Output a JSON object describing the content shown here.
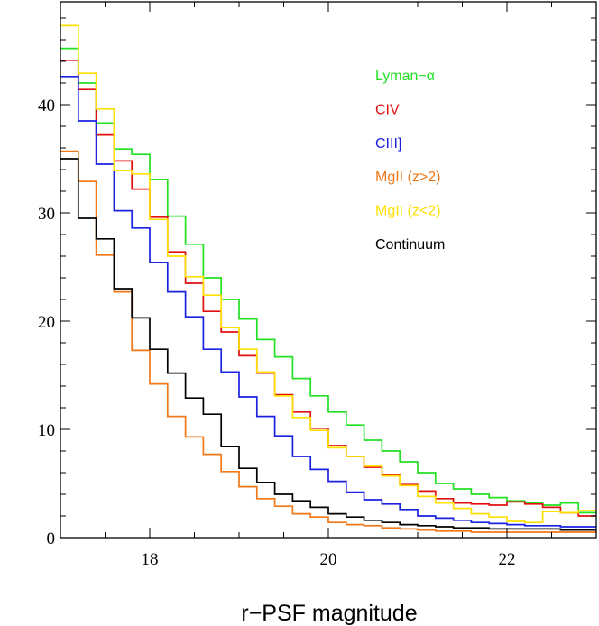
{
  "chart_data": {
    "type": "line",
    "style": "step histogram",
    "title": "",
    "xlabel": "r−PSF magnitude",
    "ylabel": "",
    "xlim": [
      17.0,
      23.0
    ],
    "ylim": [
      0,
      49.5
    ],
    "xticks_major": [
      18,
      20,
      22
    ],
    "xtick_labels": [
      "18",
      "20",
      "22"
    ],
    "yticks_major": [
      0,
      10,
      20,
      30,
      40
    ],
    "ytick_labels": [
      "0",
      "10",
      "20",
      "30",
      "40"
    ],
    "grid": false,
    "legend_position": "top-right",
    "bin_edges": [
      17.0,
      17.2,
      17.4,
      17.6,
      17.8,
      18.0,
      18.2,
      18.4,
      18.6,
      18.8,
      19.0,
      19.2,
      19.4,
      19.6,
      19.8,
      20.0,
      20.2,
      20.4,
      20.6,
      20.8,
      21.0,
      21.2,
      21.4,
      21.6,
      21.8,
      22.0,
      22.2,
      22.4,
      22.6,
      22.8,
      23.0
    ],
    "series": [
      {
        "name": "Lyman−α",
        "color": "#22e022",
        "values": [
          45.2,
          42.0,
          38.3,
          35.9,
          35.4,
          33.1,
          29.7,
          27.1,
          24.0,
          22.0,
          20.2,
          18.3,
          16.7,
          14.7,
          13.1,
          11.6,
          10.4,
          9.0,
          8.0,
          7.0,
          6.0,
          5.0,
          4.5,
          4.0,
          3.7,
          3.4,
          3.2,
          3.0,
          3.2,
          2.3
        ]
      },
      {
        "name": "CIV",
        "color": "#e01010",
        "values": [
          44.1,
          41.4,
          37.2,
          34.8,
          32.2,
          29.6,
          26.4,
          23.5,
          20.9,
          19.0,
          16.8,
          15.2,
          13.2,
          11.6,
          10.1,
          8.5,
          7.5,
          6.5,
          5.8,
          4.9,
          4.3,
          3.6,
          3.2,
          3.1,
          3.0,
          3.3,
          3.1,
          2.8,
          2.3,
          2.0
        ]
      },
      {
        "name": "CIII]",
        "color": "#1a22e0",
        "values": [
          42.6,
          38.5,
          34.5,
          30.2,
          28.6,
          25.4,
          22.7,
          20.4,
          17.4,
          15.3,
          13.0,
          11.2,
          9.4,
          7.5,
          6.3,
          5.2,
          4.2,
          3.5,
          3.1,
          2.6,
          2.0,
          1.8,
          1.6,
          1.4,
          1.3,
          1.2,
          1.1,
          1.1,
          1.0,
          1.0
        ]
      },
      {
        "name": "MgII (z>2)",
        "color": "#f07818",
        "values": [
          35.7,
          32.9,
          26.1,
          22.7,
          17.3,
          14.2,
          11.2,
          9.3,
          7.7,
          6.1,
          4.7,
          3.6,
          2.9,
          2.2,
          1.9,
          1.4,
          1.2,
          1.1,
          0.9,
          0.8,
          0.7,
          0.6,
          0.6,
          0.5,
          0.5,
          0.5,
          0.5,
          0.5,
          0.5,
          0.5
        ]
      },
      {
        "name": "MgII (z<2)",
        "color": "#ffe000",
        "values": [
          47.3,
          42.9,
          39.6,
          33.9,
          33.6,
          29.4,
          26.0,
          24.1,
          22.4,
          19.4,
          17.4,
          15.3,
          13.1,
          11.1,
          9.9,
          8.3,
          7.5,
          6.6,
          5.7,
          4.8,
          3.8,
          3.2,
          2.7,
          2.2,
          1.9,
          1.5,
          1.4,
          2.4,
          2.3,
          2.5
        ]
      },
      {
        "name": "Continuum",
        "color": "#000000",
        "values": [
          35.0,
          29.5,
          27.6,
          23.0,
          20.3,
          17.4,
          15.2,
          12.9,
          11.4,
          8.4,
          6.4,
          5.1,
          4.0,
          3.4,
          2.8,
          2.2,
          1.9,
          1.6,
          1.4,
          1.2,
          1.1,
          1.0,
          0.9,
          0.9,
          0.8,
          0.8,
          0.8,
          0.8,
          0.7,
          0.7
        ]
      }
    ]
  }
}
